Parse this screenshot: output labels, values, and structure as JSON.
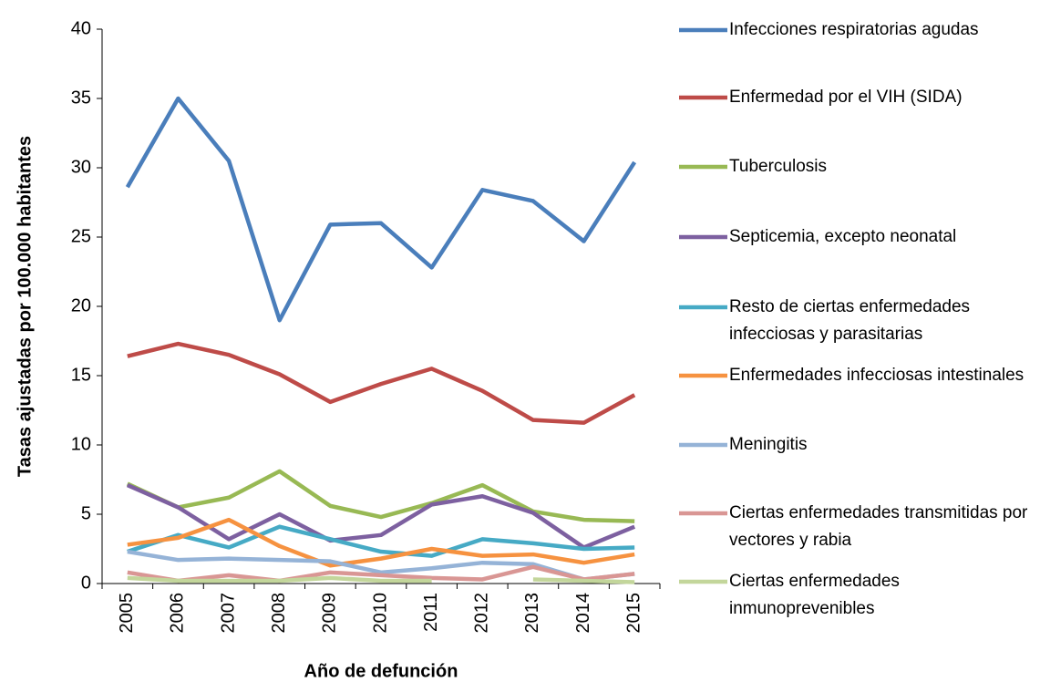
{
  "chart_data": {
    "type": "line",
    "x_label": "Año de defunción",
    "y_label": "Tasas ajustadas por 100.000 habitantes",
    "categories": [
      "2005",
      "2006",
      "2007",
      "2008",
      "2009",
      "2010",
      "2011",
      "2012",
      "2013",
      "2014",
      "2015"
    ],
    "ylim": [
      0,
      40
    ],
    "yticks": [
      0,
      5,
      10,
      15,
      20,
      25,
      30,
      35,
      40
    ],
    "grid": false,
    "legend": "right",
    "series": [
      {
        "name": "Infecciones respiratorias agudas",
        "color": "#4a7ebb",
        "values": [
          28.6,
          35.0,
          30.5,
          19.0,
          25.9,
          26.0,
          22.8,
          28.4,
          27.6,
          24.7,
          30.4
        ]
      },
      {
        "name": "Enfermedad por el VIH (SIDA)",
        "color": "#be4b48",
        "values": [
          16.4,
          17.3,
          16.5,
          15.1,
          13.1,
          14.4,
          15.5,
          13.9,
          11.8,
          11.6,
          13.6
        ]
      },
      {
        "name": "Tuberculosis",
        "color": "#98b954",
        "values": [
          7.2,
          5.5,
          6.2,
          8.1,
          5.6,
          4.8,
          5.8,
          7.1,
          5.2,
          4.6,
          4.5
        ]
      },
      {
        "name": "Septicemia, excepto neonatal",
        "color": "#7d60a0",
        "values": [
          7.1,
          5.5,
          3.2,
          5.0,
          3.1,
          3.5,
          5.7,
          6.3,
          5.1,
          2.6,
          4.1
        ]
      },
      {
        "name": "Resto de ciertas enfermedades infecciosas y parasitarias",
        "color": "#46aac5",
        "values": [
          2.3,
          3.5,
          2.6,
          4.1,
          3.2,
          2.3,
          2.0,
          3.2,
          2.9,
          2.5,
          2.6
        ]
      },
      {
        "name": "Enfermedades infecciosas intestinales",
        "color": "#f69240",
        "values": [
          2.8,
          3.3,
          4.6,
          2.7,
          1.3,
          1.8,
          2.5,
          2.0,
          2.1,
          1.5,
          2.1
        ]
      },
      {
        "name": "Meningitis",
        "color": "#95b3d7",
        "values": [
          2.3,
          1.7,
          1.8,
          1.7,
          1.6,
          0.8,
          1.1,
          1.5,
          1.4,
          0.3,
          0.7
        ]
      },
      {
        "name": "Ciertas enfermedades transmitidas por vectores y rabia",
        "color": "#d99694",
        "values": [
          0.8,
          0.2,
          0.6,
          0.2,
          0.8,
          0.6,
          0.4,
          0.3,
          1.2,
          0.3,
          0.7
        ]
      },
      {
        "name": "Ciertas enfermedades inmunoprevenibles",
        "color": "#c3d69b",
        "values": [
          0.4,
          0.2,
          0.2,
          0.2,
          0.4,
          0.2,
          0.2,
          null,
          0.3,
          0.2,
          0.1
        ]
      }
    ]
  }
}
